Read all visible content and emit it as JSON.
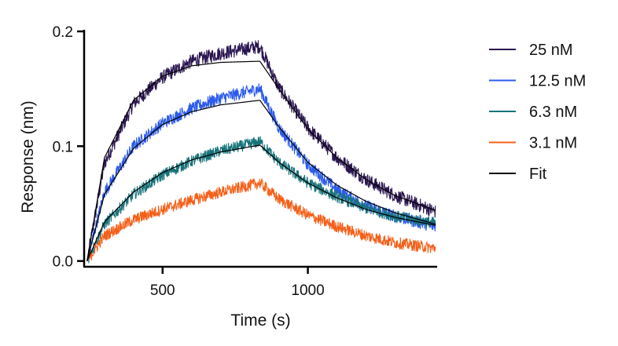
{
  "chart_data": {
    "type": "line",
    "title": "",
    "xlabel": "Time (s)",
    "ylabel": "Response (nm)",
    "xlim": [
      230,
      1445
    ],
    "ylim": [
      -0.005,
      0.2
    ],
    "x_ticks": [
      500,
      1000
    ],
    "x_tick_labels": [
      "500",
      "1000"
    ],
    "y_ticks": [
      0.0,
      0.1,
      0.2
    ],
    "y_tick_labels": [
      "0.0",
      "0.1",
      "0.2"
    ],
    "grid": false,
    "legend_position": "right",
    "association_start": 240,
    "dissociation_start": 835,
    "series": [
      {
        "name": "25 nM",
        "color": "#2a1550",
        "x": [
          240,
          300,
          400,
          500,
          600,
          700,
          835,
          900,
          1000,
          1100,
          1200,
          1300,
          1440
        ],
        "values": [
          0.0,
          0.085,
          0.137,
          0.16,
          0.174,
          0.181,
          0.187,
          0.151,
          0.116,
          0.09,
          0.071,
          0.057,
          0.043
        ]
      },
      {
        "name": "12.5 nM",
        "color": "#2c5bea",
        "x": [
          240,
          300,
          400,
          500,
          600,
          700,
          835,
          900,
          1000,
          1100,
          1200,
          1300,
          1440
        ],
        "values": [
          0.0,
          0.06,
          0.1,
          0.12,
          0.133,
          0.142,
          0.15,
          0.116,
          0.084,
          0.062,
          0.048,
          0.039,
          0.03
        ]
      },
      {
        "name": "6.3 nM",
        "color": "#17737a",
        "x": [
          240,
          300,
          400,
          500,
          600,
          700,
          835,
          900,
          1000,
          1100,
          1200,
          1300,
          1440
        ],
        "values": [
          0.0,
          0.032,
          0.058,
          0.075,
          0.087,
          0.096,
          0.104,
          0.086,
          0.068,
          0.056,
          0.046,
          0.039,
          0.033
        ]
      },
      {
        "name": "3.1 nM",
        "color": "#f4601a",
        "x": [
          240,
          300,
          400,
          500,
          600,
          700,
          835,
          900,
          1000,
          1100,
          1200,
          1300,
          1440
        ],
        "values": [
          0.0,
          0.022,
          0.036,
          0.045,
          0.053,
          0.06,
          0.068,
          0.054,
          0.04,
          0.03,
          0.022,
          0.016,
          0.011
        ]
      },
      {
        "name": "Fit",
        "color": "#000000",
        "x": [
          240,
          300,
          400,
          500,
          600,
          700,
          835,
          900,
          1000,
          1100,
          1200,
          1300,
          1440
        ],
        "values": [
          0.0,
          0.09,
          0.14,
          0.161,
          0.17,
          0.173,
          0.174,
          0.15,
          0.115,
          0.09,
          0.071,
          0.057,
          0.044
        ]
      }
    ],
    "fit_curves": [
      {
        "for": "25 nM",
        "x": [
          240,
          300,
          400,
          500,
          600,
          700,
          835,
          900,
          1000,
          1100,
          1200,
          1300,
          1440
        ],
        "values": [
          0.0,
          0.09,
          0.14,
          0.161,
          0.17,
          0.173,
          0.174,
          0.15,
          0.115,
          0.09,
          0.071,
          0.057,
          0.044
        ]
      },
      {
        "for": "12.5 nM",
        "x": [
          240,
          300,
          400,
          500,
          600,
          700,
          835,
          900,
          1000,
          1100,
          1200,
          1300,
          1440
        ],
        "values": [
          0.0,
          0.058,
          0.098,
          0.119,
          0.13,
          0.136,
          0.14,
          0.117,
          0.086,
          0.066,
          0.052,
          0.042,
          0.032
        ]
      },
      {
        "for": "6.3 nM",
        "x": [
          240,
          300,
          400,
          500,
          600,
          700,
          835,
          900,
          1000,
          1100,
          1200,
          1300,
          1440
        ],
        "values": [
          0.0,
          0.034,
          0.06,
          0.077,
          0.088,
          0.095,
          0.101,
          0.086,
          0.068,
          0.055,
          0.045,
          0.038,
          0.031
        ]
      }
    ]
  }
}
